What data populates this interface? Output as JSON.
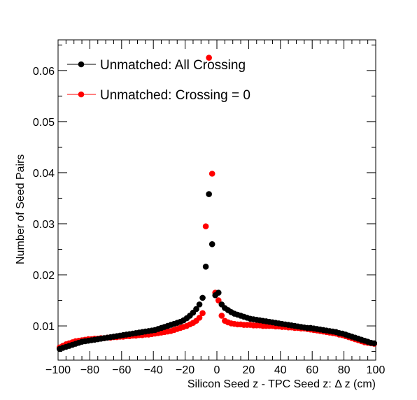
{
  "chart_data": {
    "type": "scatter",
    "title": "",
    "xlabel": "Silicon Seed z - TPC Seed z:     Δ z (cm)",
    "ylabel": "Number of Seed Pairs",
    "xlim": [
      -100,
      100
    ],
    "ylim": [
      0.0033,
      0.066
    ],
    "x_ticks": [
      -100,
      -80,
      -60,
      -40,
      -20,
      0,
      20,
      40,
      60,
      80,
      100
    ],
    "x_tick_labels": [
      "−100",
      "−80",
      "−60",
      "−40",
      "−20",
      "0",
      "20",
      "40",
      "60",
      "80",
      "100"
    ],
    "y_ticks": [
      0.01,
      0.02,
      0.03,
      0.04,
      0.05,
      0.06
    ],
    "y_tick_labels": [
      "0.01",
      "0.02",
      "0.03",
      "0.04",
      "0.05",
      "0.06"
    ],
    "grid": false,
    "legend_position": "top-left",
    "series": [
      {
        "name": "Unmatched: All Crossing",
        "color": "#000000",
        "points": [
          [
            -99,
            0.0055
          ],
          [
            -97,
            0.0057
          ],
          [
            -95,
            0.0059
          ],
          [
            -93,
            0.0061
          ],
          [
            -91,
            0.0063
          ],
          [
            -89,
            0.0065
          ],
          [
            -87,
            0.0067
          ],
          [
            -85,
            0.0069
          ],
          [
            -83,
            0.007
          ],
          [
            -81,
            0.0071
          ],
          [
            -79,
            0.0072
          ],
          [
            -77,
            0.0073
          ],
          [
            -75,
            0.0074
          ],
          [
            -73,
            0.0075
          ],
          [
            -71,
            0.0076
          ],
          [
            -69,
            0.0077
          ],
          [
            -67,
            0.0078
          ],
          [
            -65,
            0.0079
          ],
          [
            -63,
            0.008
          ],
          [
            -61,
            0.0081
          ],
          [
            -59,
            0.0082
          ],
          [
            -57,
            0.0083
          ],
          [
            -55,
            0.0084
          ],
          [
            -53,
            0.0085
          ],
          [
            -51,
            0.0086
          ],
          [
            -49,
            0.0087
          ],
          [
            -47,
            0.0088
          ],
          [
            -45,
            0.0089
          ],
          [
            -43,
            0.009
          ],
          [
            -41,
            0.0091
          ],
          [
            -39,
            0.0092
          ],
          [
            -37,
            0.0094
          ],
          [
            -35,
            0.0096
          ],
          [
            -33,
            0.0098
          ],
          [
            -31,
            0.01
          ],
          [
            -29,
            0.0102
          ],
          [
            -27,
            0.0104
          ],
          [
            -25,
            0.0106
          ],
          [
            -23,
            0.0108
          ],
          [
            -21,
            0.0111
          ],
          [
            -19,
            0.0115
          ],
          [
            -17,
            0.012
          ],
          [
            -15,
            0.0126
          ],
          [
            -13,
            0.0133
          ],
          [
            -11,
            0.0142
          ],
          [
            -9,
            0.0155
          ],
          [
            -7,
            0.0216
          ],
          [
            -5,
            0.0358
          ],
          [
            -3,
            0.026
          ],
          [
            -1,
            0.016
          ],
          [
            1,
            0.0165
          ],
          [
            3,
            0.0142
          ],
          [
            5,
            0.0135
          ],
          [
            7,
            0.0131
          ],
          [
            9,
            0.0127
          ],
          [
            11,
            0.0124
          ],
          [
            13,
            0.0122
          ],
          [
            15,
            0.012
          ],
          [
            17,
            0.0118
          ],
          [
            19,
            0.0116
          ],
          [
            21,
            0.0114
          ],
          [
            23,
            0.0113
          ],
          [
            25,
            0.0112
          ],
          [
            27,
            0.0111
          ],
          [
            29,
            0.011
          ],
          [
            31,
            0.0109
          ],
          [
            33,
            0.0108
          ],
          [
            35,
            0.0107
          ],
          [
            37,
            0.0106
          ],
          [
            39,
            0.0105
          ],
          [
            41,
            0.0104
          ],
          [
            43,
            0.0103
          ],
          [
            45,
            0.0102
          ],
          [
            47,
            0.0101
          ],
          [
            49,
            0.01
          ],
          [
            51,
            0.0099
          ],
          [
            53,
            0.0098
          ],
          [
            55,
            0.0097
          ],
          [
            57,
            0.0096
          ],
          [
            59,
            0.0096
          ],
          [
            61,
            0.0095
          ],
          [
            63,
            0.0094
          ],
          [
            65,
            0.0093
          ],
          [
            67,
            0.0092
          ],
          [
            69,
            0.0091
          ],
          [
            71,
            0.009
          ],
          [
            73,
            0.0089
          ],
          [
            75,
            0.0088
          ],
          [
            77,
            0.0086
          ],
          [
            79,
            0.0085
          ],
          [
            81,
            0.0083
          ],
          [
            83,
            0.0081
          ],
          [
            85,
            0.0079
          ],
          [
            87,
            0.0077
          ],
          [
            89,
            0.0075
          ],
          [
            91,
            0.0073
          ],
          [
            93,
            0.0071
          ],
          [
            95,
            0.0069
          ],
          [
            97,
            0.0067
          ],
          [
            99,
            0.0066
          ]
        ]
      },
      {
        "name": "Unmatched: Crossing = 0",
        "color": "#ff0000",
        "points": [
          [
            -99,
            0.0058
          ],
          [
            -97,
            0.0061
          ],
          [
            -95,
            0.0064
          ],
          [
            -93,
            0.0066
          ],
          [
            -91,
            0.0068
          ],
          [
            -89,
            0.007
          ],
          [
            -87,
            0.0071
          ],
          [
            -85,
            0.0072
          ],
          [
            -83,
            0.0073
          ],
          [
            -81,
            0.0074
          ],
          [
            -79,
            0.0074
          ],
          [
            -77,
            0.0075
          ],
          [
            -75,
            0.0075
          ],
          [
            -73,
            0.0076
          ],
          [
            -71,
            0.0076
          ],
          [
            -69,
            0.0077
          ],
          [
            -67,
            0.0077
          ],
          [
            -65,
            0.0078
          ],
          [
            -63,
            0.0078
          ],
          [
            -61,
            0.0079
          ],
          [
            -59,
            0.0079
          ],
          [
            -57,
            0.008
          ],
          [
            -55,
            0.008
          ],
          [
            -53,
            0.0081
          ],
          [
            -51,
            0.0081
          ],
          [
            -49,
            0.0082
          ],
          [
            -47,
            0.0082
          ],
          [
            -45,
            0.0083
          ],
          [
            -43,
            0.0083
          ],
          [
            -41,
            0.0084
          ],
          [
            -39,
            0.0085
          ],
          [
            -37,
            0.0086
          ],
          [
            -35,
            0.0087
          ],
          [
            -33,
            0.0088
          ],
          [
            -31,
            0.0089
          ],
          [
            -29,
            0.009
          ],
          [
            -27,
            0.0092
          ],
          [
            -25,
            0.0094
          ],
          [
            -23,
            0.0096
          ],
          [
            -21,
            0.0098
          ],
          [
            -19,
            0.01
          ],
          [
            -17,
            0.0103
          ],
          [
            -15,
            0.0106
          ],
          [
            -13,
            0.011
          ],
          [
            -11,
            0.0116
          ],
          [
            -9,
            0.0125
          ],
          [
            -7,
            0.0295
          ],
          [
            -5,
            0.0625
          ],
          [
            -3,
            0.0398
          ],
          [
            -1,
            0.0165
          ],
          [
            1,
            0.015
          ],
          [
            3,
            0.012
          ],
          [
            5,
            0.011
          ],
          [
            7,
            0.0107
          ],
          [
            9,
            0.0105
          ],
          [
            11,
            0.0104
          ],
          [
            13,
            0.0103
          ],
          [
            15,
            0.0103
          ],
          [
            17,
            0.0102
          ],
          [
            19,
            0.0102
          ],
          [
            21,
            0.0102
          ],
          [
            23,
            0.0101
          ],
          [
            25,
            0.0101
          ],
          [
            27,
            0.0101
          ],
          [
            29,
            0.01
          ],
          [
            31,
            0.01
          ],
          [
            33,
            0.01
          ],
          [
            35,
            0.01
          ],
          [
            37,
            0.0099
          ],
          [
            39,
            0.0099
          ],
          [
            41,
            0.0098
          ],
          [
            43,
            0.0098
          ],
          [
            45,
            0.0097
          ],
          [
            47,
            0.0097
          ],
          [
            49,
            0.0096
          ],
          [
            51,
            0.0096
          ],
          [
            53,
            0.0095
          ],
          [
            55,
            0.0095
          ],
          [
            57,
            0.0094
          ],
          [
            59,
            0.0093
          ],
          [
            61,
            0.0092
          ],
          [
            63,
            0.0091
          ],
          [
            65,
            0.009
          ],
          [
            67,
            0.0089
          ],
          [
            69,
            0.0088
          ],
          [
            71,
            0.0087
          ],
          [
            73,
            0.0086
          ],
          [
            75,
            0.0085
          ],
          [
            77,
            0.0083
          ],
          [
            79,
            0.0082
          ],
          [
            81,
            0.008
          ],
          [
            83,
            0.0078
          ],
          [
            85,
            0.0076
          ],
          [
            87,
            0.0074
          ],
          [
            89,
            0.0072
          ],
          [
            91,
            0.007
          ],
          [
            93,
            0.0068
          ],
          [
            95,
            0.0067
          ],
          [
            97,
            0.0066
          ],
          [
            99,
            0.0065
          ]
        ]
      }
    ]
  }
}
